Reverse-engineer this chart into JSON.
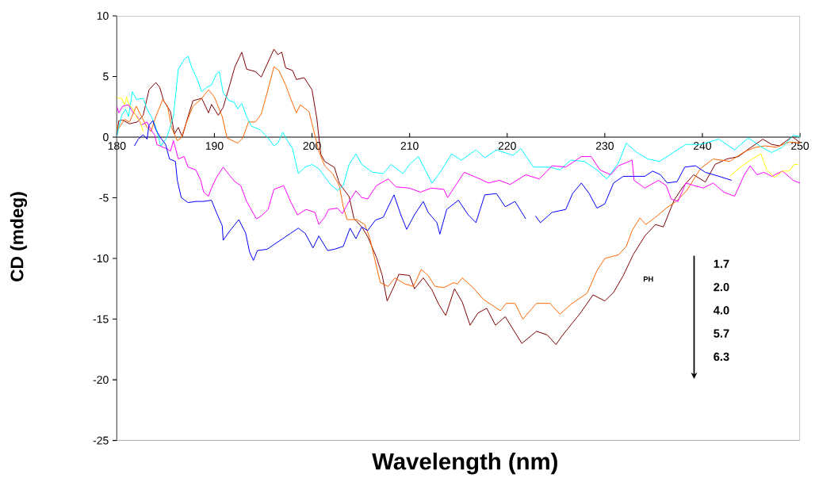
{
  "chart_data": {
    "type": "line",
    "xlabel": "Wavelength (nm)",
    "ylabel": "CD (mdeg)",
    "xlim": [
      180,
      250
    ],
    "ylim": [
      -25,
      10
    ],
    "xticks": [
      180,
      190,
      200,
      210,
      220,
      230,
      240,
      250
    ],
    "yticks": [
      -25,
      -20,
      -15,
      -10,
      -5,
      0,
      5,
      10
    ],
    "line_style": "solid",
    "annotations": [
      "PH",
      "1.7",
      "2.0",
      "4.0",
      "5.7",
      "6.3"
    ],
    "series": [
      {
        "color": "#800000",
        "x": [
          180,
          180.2,
          180.6,
          181.3,
          182.1,
          182.7,
          183.3,
          184.0,
          184.4,
          184.8,
          185.5,
          185.9,
          186.3,
          186.7,
          187.3,
          187.8,
          188.7,
          189.4,
          189.7,
          190.4,
          190.9,
          191.5,
          192.1,
          192.8,
          193.3,
          194.2,
          194.8,
          196.1,
          196.5,
          196.9,
          197.3,
          198.0,
          198.4,
          199.2,
          200.0,
          200.5,
          200.9,
          201.3,
          202.3,
          202.8,
          203.8,
          204.3,
          205.1,
          205.7,
          206.6,
          207.2,
          207.7,
          208.4,
          208.9,
          210.0,
          210.5,
          211.4,
          212.3,
          213.0,
          213.7,
          214.6,
          215.4,
          216.2,
          217.0,
          217.9,
          218.8,
          219.8,
          221.5,
          223.0,
          224.1,
          225.0,
          225.6,
          226.2,
          227.5,
          228.8,
          230.0,
          230.9,
          231.9,
          232.9,
          234.1,
          235.2,
          236.0,
          237.1,
          238.0,
          239.1,
          240.3,
          241.3,
          242.5,
          243.7,
          244.8,
          246.2,
          247.1,
          247.9,
          249.2,
          250.0
        ],
        "values": [
          0.0,
          1.35,
          1.4,
          1.1,
          1.25,
          1.8,
          3.9,
          4.5,
          4.1,
          3.0,
          2.1,
          0.26,
          0.8,
          0.04,
          1.7,
          3.0,
          3.2,
          2.0,
          2.7,
          1.8,
          2.45,
          4.1,
          5.8,
          7.0,
          5.6,
          5.4,
          4.95,
          7.25,
          6.8,
          7.0,
          5.7,
          5.5,
          4.75,
          4.9,
          3.9,
          1.5,
          -1.4,
          -2.0,
          -2.5,
          -3.8,
          -4.9,
          -6.7,
          -7.4,
          -8.2,
          -9.9,
          -11.4,
          -13.5,
          -12.3,
          -11.3,
          -11.4,
          -12.5,
          -11.6,
          -12.6,
          -13.8,
          -14.7,
          -12.5,
          -13.6,
          -15.5,
          -14.5,
          -14.1,
          -15.5,
          -14.8,
          -17.0,
          -16.0,
          -16.3,
          -17.1,
          -16.4,
          -15.8,
          -14.5,
          -13.0,
          -13.5,
          -12.8,
          -11.4,
          -9.7,
          -8.15,
          -7.2,
          -7.4,
          -5.2,
          -4.1,
          -3.1,
          -3.7,
          -2.25,
          -1.8,
          -1.6,
          -0.94,
          -0.17,
          -0.6,
          -0.72,
          0.04,
          -0.44
        ]
      },
      {
        "color": "#ff6600",
        "x": [
          180,
          180.1,
          180.8,
          181.3,
          182.0,
          182.4,
          183.1,
          183.5,
          184.0,
          184.7,
          185.2,
          185.6,
          186.2,
          186.6,
          187.1,
          187.8,
          188.6,
          189.4,
          190.0,
          190.8,
          191.3,
          192.4,
          192.9,
          193.5,
          194.2,
          194.8,
          195.4,
          196.1,
          196.6,
          197.3,
          197.8,
          198.4,
          198.8,
          199.7,
          200.1,
          200.7,
          201.3,
          202.1,
          202.8,
          203.2,
          203.6,
          204.6,
          205.4,
          205.9,
          207.0,
          207.8,
          208.5,
          209.5,
          210.4,
          211.2,
          211.9,
          212.6,
          213.5,
          214.5,
          214.9,
          215.4,
          216.5,
          217.6,
          219.3,
          219.9,
          220.8,
          221.6,
          223.0,
          224.4,
          225.4,
          226.5,
          228.2,
          229.2,
          230.0,
          231.4,
          232.2,
          232.8,
          233.6,
          234.2,
          235.2,
          236.3,
          237.3,
          238.4,
          239.8,
          241.1,
          242.8,
          244.4,
          245.5,
          246.4,
          247.6,
          248.9,
          250.0
        ],
        "values": [
          1.1,
          0.6,
          1.46,
          1.25,
          2.55,
          1.9,
          0.8,
          0.48,
          1.7,
          3.1,
          2.55,
          0.8,
          -0.28,
          -0.07,
          1.14,
          2.55,
          3.1,
          3.9,
          3.3,
          1.7,
          -0.07,
          -0.5,
          -0.07,
          1.25,
          1.25,
          1.9,
          3.65,
          5.8,
          5.5,
          4.3,
          3.2,
          2.0,
          2.66,
          2.1,
          0.8,
          -1.16,
          -2.36,
          -3.0,
          -4.0,
          -5.74,
          -6.8,
          -6.8,
          -7.2,
          -8.26,
          -12.0,
          -12.3,
          -11.6,
          -12.1,
          -12.3,
          -10.9,
          -11.4,
          -12.3,
          -12.4,
          -12.0,
          -12.1,
          -11.6,
          -12.4,
          -13.4,
          -14.3,
          -13.7,
          -13.7,
          -15.0,
          -13.7,
          -13.7,
          -14.6,
          -13.8,
          -12.85,
          -11.0,
          -10.0,
          -9.7,
          -9.0,
          -7.7,
          -6.66,
          -7.2,
          -6.6,
          -5.85,
          -5.3,
          -4.4,
          -2.6,
          -1.8,
          -2.0,
          -1.16,
          -0.83,
          -0.72,
          -0.83,
          -0.4,
          -0.5
        ]
      },
      {
        "color": "#00ffff",
        "x": [
          180,
          180.2,
          180.5,
          180.9,
          181.2,
          181.6,
          182.0,
          182.7,
          183.1,
          183.6,
          184.0,
          184.5,
          185.1,
          185.8,
          186.3,
          186.9,
          187.3,
          187.7,
          188.2,
          188.7,
          189.2,
          189.7,
          190.2,
          190.5,
          190.9,
          191.5,
          192.0,
          192.4,
          192.8,
          193.3,
          193.8,
          194.7,
          195.5,
          196.1,
          196.5,
          197.0,
          197.4,
          198.0,
          198.6,
          199.3,
          200.0,
          200.7,
          201.9,
          202.6,
          203.2,
          203.8,
          204.5,
          205.1,
          206.2,
          207.3,
          208.1,
          209.3,
          210.0,
          210.9,
          211.6,
          212.3,
          213.3,
          214.3,
          215.3,
          216.8,
          217.7,
          218.9,
          220.6,
          221.4,
          222.7,
          224.4,
          225.4,
          226.5,
          227.9,
          229.2,
          230.2,
          231.4,
          232.2,
          233.3,
          234.4,
          235.6,
          236.8,
          238.3,
          239.8,
          241.7,
          243.3,
          244.7,
          246.3,
          247.1,
          248.2,
          249.3,
          250.0
        ],
        "values": [
          0.04,
          0.8,
          1.8,
          2.3,
          1.7,
          3.75,
          3.1,
          3.2,
          2.3,
          1.6,
          0.8,
          -0.72,
          -0.07,
          1.7,
          5.6,
          6.4,
          6.66,
          5.7,
          4.85,
          3.75,
          4.1,
          4.3,
          5.2,
          5.4,
          3.65,
          3.0,
          2.9,
          2.34,
          2.77,
          1.7,
          0.9,
          0.6,
          -0.07,
          -0.72,
          -0.5,
          0.4,
          -0.17,
          -0.94,
          -3.0,
          -2.47,
          -2.25,
          -2.6,
          -3.9,
          -4.4,
          -4.0,
          -2.25,
          -1.38,
          -2.25,
          -2.9,
          -3.0,
          -2.25,
          -3.0,
          -2.25,
          -1.6,
          -2.7,
          -3.8,
          -2.7,
          -1.38,
          -1.9,
          -1.05,
          -1.7,
          -1.05,
          -1.5,
          -0.94,
          -2.47,
          -2.47,
          -2.7,
          -1.9,
          -2.0,
          -2.7,
          -3.45,
          -2.14,
          -0.5,
          -1.27,
          -1.8,
          -2.0,
          -1.38,
          -0.6,
          -0.6,
          -0.17,
          -1.05,
          -0.07,
          -0.94,
          -1.27,
          -0.83,
          0.15,
          0.04
        ]
      },
      {
        "color": "#ff00ff",
        "x": [
          180,
          180.2,
          180.6,
          181.2,
          181.6,
          182.1,
          182.5,
          183.1,
          183.5,
          183.9,
          184.1,
          184.7,
          185.1,
          185.5,
          185.8,
          186.3,
          186.9,
          187.3,
          188.1,
          188.6,
          188.9,
          189.4,
          189.7,
          190.2,
          190.9,
          191.5,
          192.1,
          192.7,
          193.3,
          194.3,
          194.8,
          195.5,
          196.1,
          197.1,
          197.8,
          198.5,
          199.4,
          200.3,
          200.7,
          201.3,
          201.7,
          202.6,
          203.1,
          203.8,
          204.5,
          205.1,
          205.7,
          206.6,
          207.8,
          208.6,
          210.0,
          211.1,
          212.2,
          213.5,
          213.9,
          214.7,
          215.6,
          216.9,
          218.1,
          219.2,
          220.3,
          221.9,
          223.3,
          224.6,
          226.0,
          227.6,
          228.6,
          229.5,
          230.6,
          231.4,
          232.8,
          233.0,
          234.1,
          235.5,
          236.3,
          236.8,
          237.5,
          238.3,
          239.2,
          240.1,
          241.1,
          242.2,
          243.3,
          244.3,
          244.9,
          245.6,
          246.3,
          247.1,
          248.2,
          249.3,
          250.0
        ],
        "values": [
          2.55,
          2.0,
          2.55,
          2.66,
          2.1,
          1.7,
          1.0,
          1.25,
          0.6,
          0.15,
          -0.6,
          -0.83,
          -0.94,
          -1.16,
          -0.28,
          -1.8,
          -1.6,
          -2.47,
          -2.7,
          -3.56,
          -4.54,
          -4.87,
          -4.2,
          -3.34,
          -2.47,
          -3.1,
          -3.67,
          -4.0,
          -5.3,
          -6.73,
          -6.5,
          -5.96,
          -4.3,
          -4.0,
          -5.3,
          -6.4,
          -5.96,
          -6.2,
          -7.2,
          -6.6,
          -5.96,
          -5.85,
          -6.3,
          -5.3,
          -4.43,
          -4.98,
          -5.1,
          -4.0,
          -3.45,
          -4.1,
          -4.2,
          -4.54,
          -4.2,
          -4.3,
          -4.98,
          -4.0,
          -2.9,
          -3.34,
          -3.78,
          -3.56,
          -3.9,
          -3.1,
          -3.45,
          -2.36,
          -2.47,
          -1.6,
          -1.6,
          -2.7,
          -3.1,
          -2.36,
          -1.9,
          -3.56,
          -4.2,
          -3.56,
          -4.0,
          -5.1,
          -5.3,
          -3.78,
          -4.0,
          -4.2,
          -3.78,
          -4.54,
          -4.87,
          -3.1,
          -2.36,
          -3.1,
          -2.9,
          -3.23,
          -2.8,
          -3.56,
          -3.78
        ]
      },
      {
        "color": "#0000ff",
        "x": [
          181.8,
          182.2,
          182.7,
          183.1,
          183.3,
          183.7,
          184.0,
          184.5,
          185.0,
          185.4,
          186.0,
          186.2,
          186.6,
          187.3,
          188.1,
          188.9,
          189.7,
          190.2,
          190.8,
          190.9,
          191.6,
          192.5,
          193.2,
          193.6,
          194.0,
          194.4,
          195.4,
          196.2,
          197.0,
          197.8,
          198.6,
          199.3,
          200.1,
          200.7,
          201.6,
          202.3,
          203.2,
          203.9,
          204.5,
          205.1,
          205.7,
          206.5,
          207.3,
          208.2,
          208.4,
          209.1,
          209.7,
          210.5,
          211.4,
          211.9,
          212.8,
          213.1,
          213.8,
          215.0,
          216.0,
          216.8,
          217.7,
          218.9,
          219.8,
          220.8,
          221.9,
          222.4,
          222.9,
          223.4,
          224.6,
          226.0,
          226.7,
          227.6,
          228.4,
          229.2,
          230.0,
          230.9,
          231.9,
          233.0,
          234.1,
          234.9,
          235.7,
          236.4,
          237.4,
          238.2,
          239.3,
          240.3,
          241.7,
          243.0
        ],
        "values": [
          -0.72,
          -0.17,
          0.2,
          -0.17,
          1.0,
          1.35,
          0.6,
          -0.07,
          -0.6,
          -1.8,
          -2.0,
          -3.56,
          -4.98,
          -5.4,
          -5.3,
          -5.3,
          -5.2,
          -6.2,
          -7.3,
          -8.5,
          -7.7,
          -6.8,
          -7.9,
          -9.46,
          -10.16,
          -9.35,
          -9.24,
          -8.8,
          -8.37,
          -7.93,
          -7.5,
          -7.93,
          -9.13,
          -8.15,
          -9.35,
          -9.24,
          -9.0,
          -7.5,
          -8.37,
          -7.4,
          -7.7,
          -6.84,
          -6.6,
          -5.09,
          -4.76,
          -6.4,
          -7.6,
          -6.4,
          -5.3,
          -6.2,
          -7.05,
          -8.0,
          -5.96,
          -5.2,
          -6.4,
          -7.05,
          -4.76,
          -4.65,
          -5.74,
          -5.3,
          -6.73,
          null,
          -6.5,
          -7.05,
          -6.2,
          -5.96,
          -4.65,
          -3.78,
          -4.65,
          -5.85,
          -5.5,
          -3.78,
          -3.23,
          -3.23,
          -3.23,
          -2.8,
          -3.1,
          -3.78,
          -3.67,
          -2.47,
          -2.36,
          -2.9,
          -3.23,
          -3.56
        ]
      },
      {
        "color": "#ffff00",
        "x": [
          180,
          180.2,
          180.5,
          180.8,
          181.0,
          181.2,
          181.6,
          182.0,
          182.4,
          182.7,
          212.0,
          242.8,
          243.9,
          245.1,
          246.0,
          246.6,
          247.4,
          248.2,
          248.9,
          249.4,
          249.8
        ],
        "values": [
          3.3,
          3.2,
          3.2,
          2.66,
          3.3,
          2.77,
          2.34,
          1.7,
          1.25,
          0.48,
          null,
          -3.23,
          -2.47,
          -1.8,
          -1.38,
          -2.7,
          -3.34,
          -2.8,
          -2.8,
          -2.25,
          -2.25
        ]
      }
    ]
  }
}
